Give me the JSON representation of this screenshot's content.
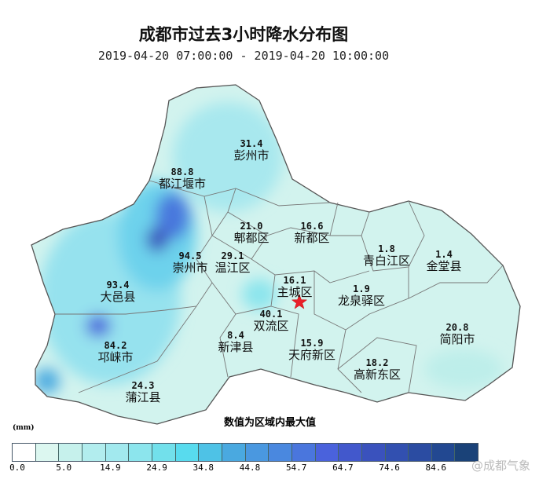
{
  "title": "成都市过去3小时降水分布图",
  "subtitle": "2019-04-20 07:00:00 - 2019-04-20 10:00:00",
  "note": "数值为区域内最大值",
  "unit": "(mm)",
  "watermark": "@成都气象",
  "center_marker": "red-star-icon",
  "districts": [
    {
      "name": "彭州市",
      "value": "31.4"
    },
    {
      "name": "都江堰市",
      "value": "88.8"
    },
    {
      "name": "郫都区",
      "value": "21.0"
    },
    {
      "name": "新都区",
      "value": "16.6"
    },
    {
      "name": "青白江区",
      "value": "1.8"
    },
    {
      "name": "金堂县",
      "value": "1.4"
    },
    {
      "name": "崇州市",
      "value": "94.5"
    },
    {
      "name": "温江区",
      "value": "29.1"
    },
    {
      "name": "主城区",
      "value": "16.1"
    },
    {
      "name": "龙泉驿区",
      "value": "1.9"
    },
    {
      "name": "大邑县",
      "value": "93.4"
    },
    {
      "name": "双流区",
      "value": "40.1"
    },
    {
      "name": "新津县",
      "value": "8.4"
    },
    {
      "name": "天府新区",
      "value": "15.9"
    },
    {
      "name": "简阳市",
      "value": "20.8"
    },
    {
      "name": "邛崃市",
      "value": "84.2"
    },
    {
      "name": "高新东区",
      "value": "18.2"
    },
    {
      "name": "蒲江县",
      "value": "24.3"
    }
  ],
  "legend": {
    "ticks": [
      "0.0",
      "5.0",
      "14.9",
      "24.9",
      "34.8",
      "44.8",
      "54.7",
      "64.7",
      "74.6",
      "84.6"
    ],
    "colors": [
      "#ffffff",
      "#dcf7f0",
      "#c6f1ec",
      "#b2edee",
      "#a2e9ee",
      "#8ce5ed",
      "#72e0eb",
      "#58dbee",
      "#4ec2e6",
      "#4aa9e0",
      "#4a98e0",
      "#4a88df",
      "#4a76dd",
      "#4a62dc",
      "#4258cc",
      "#3a52bd",
      "#3250b0",
      "#2b4ca2",
      "#224891",
      "#1a4278"
    ]
  }
}
